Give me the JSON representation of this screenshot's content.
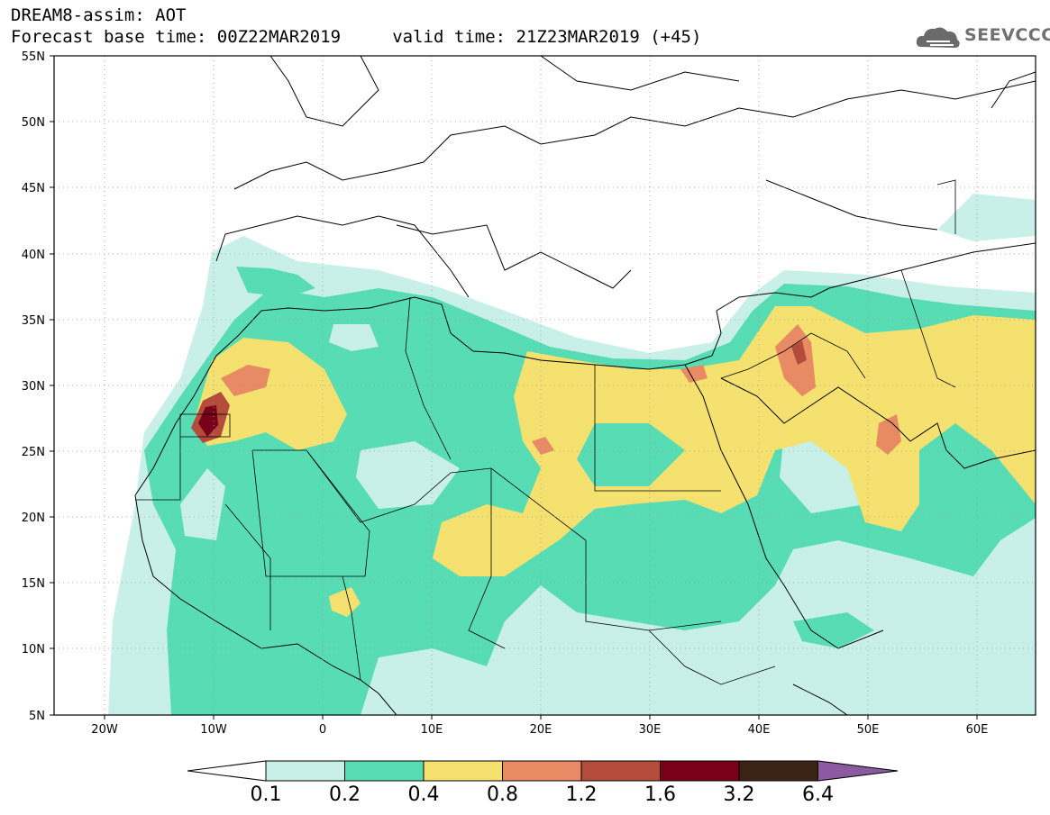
{
  "header": {
    "line1": "DREAM8-assim: AOT",
    "line2": "Forecast base time: 00Z22MAR2019     valid time: 21Z23MAR2019 (+45)"
  },
  "logo": {
    "text": "SEEVCCC",
    "icon": "cloud-logo-icon"
  },
  "map": {
    "lat_ticks": [
      "55N",
      "50N",
      "45N",
      "40N",
      "35N",
      "30N",
      "25N",
      "20N",
      "15N",
      "10N",
      "5N"
    ],
    "lon_ticks": [
      "20W",
      "10W",
      "0",
      "10E",
      "20E",
      "30E",
      "40E",
      "50E",
      "60E"
    ]
  },
  "colorbar": {
    "labels": [
      "0.1",
      "0.2",
      "0.4",
      "0.8",
      "1.2",
      "1.6",
      "3.2",
      "6.4"
    ],
    "colors": [
      "#ffffff",
      "#c8f0e8",
      "#58dcb4",
      "#f4e170",
      "#e88a64",
      "#b44c3c",
      "#780018",
      "#3c2414",
      "#8c5aa0"
    ]
  },
  "fill_colors": {
    "c1": "#c8f0e8",
    "c2": "#58dcb4",
    "c3": "#f4e170",
    "c4": "#e88a64",
    "c5": "#b44c3c",
    "c6": "#780018"
  }
}
